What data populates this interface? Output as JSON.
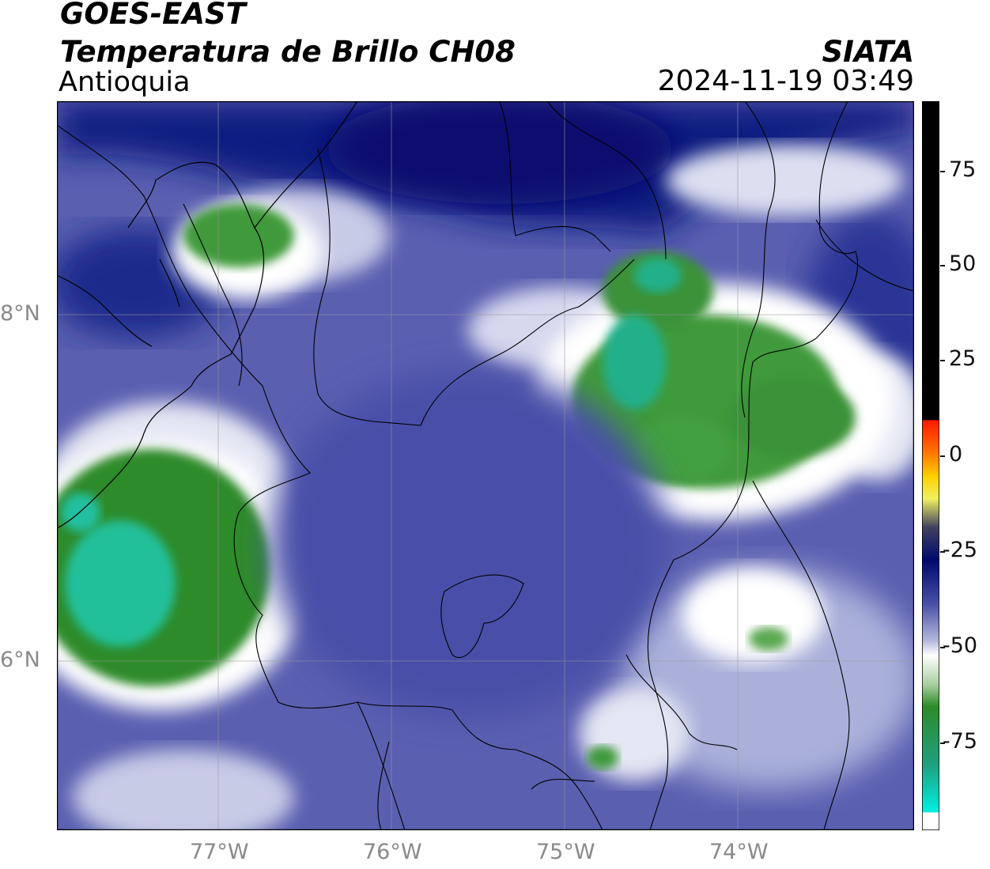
{
  "header": {
    "satellite": "GOES-EAST",
    "product": "Temperatura de Brillo CH08",
    "region": "Antioquia",
    "organization": "SIATA",
    "datetime": "2024-11-19 03:49"
  },
  "map": {
    "lon_range": [
      -77.95,
      -73.0
    ],
    "lat_range": [
      4.95,
      9.15
    ],
    "lon_labels": [
      "77°W",
      "76°W",
      "75°W",
      "74°W"
    ],
    "lat_labels": [
      "8°N",
      "6°N"
    ],
    "gridlines": true,
    "layers": [
      "satellite-imagery",
      "country-borders",
      "department-borders",
      "coastline"
    ]
  },
  "colorbar": {
    "variable": "brightness temperature",
    "tick_labels": [
      "75",
      "50",
      "25",
      "0",
      "-25",
      "-50",
      "-75"
    ],
    "range": [
      -95,
      90
    ],
    "colors": {
      "warm": "#000000",
      "red": "#ff2000",
      "orange": "#ff9000",
      "yellow": "#ffff00",
      "navy": "#000a6e",
      "blue": "#4a50a8",
      "lavender": "#b4b8dc",
      "white": "#ffffff",
      "green": "#2e8b2a",
      "teal": "#1fc9a0",
      "cyan": "#00f0e0"
    }
  }
}
